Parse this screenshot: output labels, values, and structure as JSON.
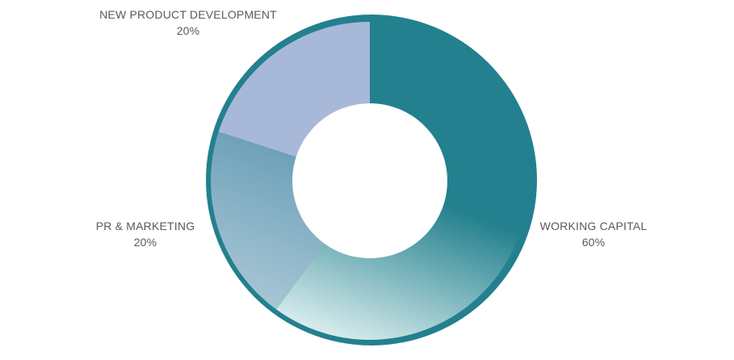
{
  "chart_data": {
    "type": "pie",
    "style": "donut",
    "title": "",
    "slices": [
      {
        "name": "WORKING CAPITAL",
        "value": 60,
        "label": "60%",
        "color": "#23808e",
        "color_light": "#d6ebec"
      },
      {
        "name": "PR & MARKETING",
        "value": 20,
        "label": "20%",
        "color": "#6b9fb8",
        "color_light": "#a9c7d6"
      },
      {
        "name": "NEW PRODUCT DEVELOPMENT",
        "value": 20,
        "label": "20%",
        "color": "#a8b8d8",
        "color_light": "#a8b8d8"
      }
    ],
    "outer_ring_color": "#23808e",
    "legend": "none"
  }
}
